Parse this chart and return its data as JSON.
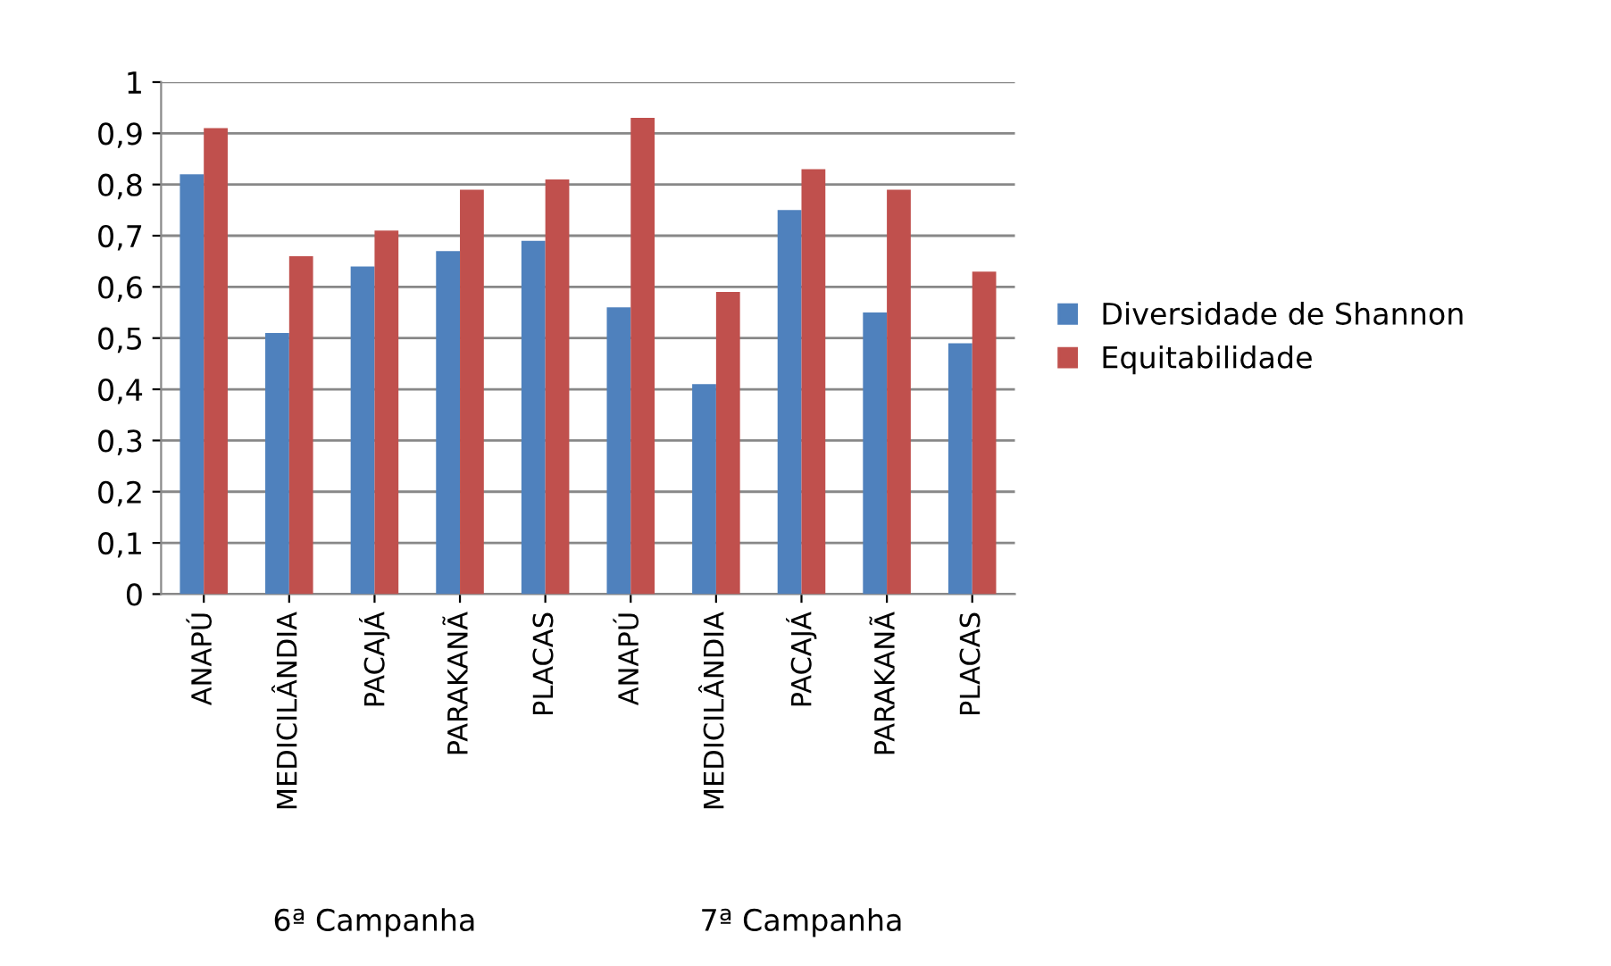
{
  "chart_data": {
    "type": "bar",
    "categories": [
      "ANAPÚ",
      "MEDICILÂNDIA",
      "PACAJÁ",
      "PARAKANÃ",
      "PLACAS",
      "ANAPÚ",
      "MEDICILÂNDIA",
      "PACAJÁ",
      "PARAKANÃ",
      "PLACAS"
    ],
    "series": [
      {
        "name": "Diversidade de Shannon",
        "color": "#4f81bd",
        "values": [
          0.82,
          0.51,
          0.64,
          0.67,
          0.69,
          0.56,
          0.41,
          0.75,
          0.55,
          0.49
        ]
      },
      {
        "name": "Equitabilidade",
        "color": "#c0504d",
        "values": [
          0.91,
          0.66,
          0.71,
          0.79,
          0.81,
          0.93,
          0.59,
          0.83,
          0.79,
          0.63
        ]
      }
    ],
    "annotations": [
      "6ª Campanha",
      "7ª Campanha"
    ],
    "ylim": [
      0,
      1
    ],
    "yticks": [
      0,
      {
        "value": 0.1,
        "label": "0,1"
      },
      {
        "value": 0.2,
        "label": "0,2"
      },
      {
        "value": 0.3,
        "label": "0,3"
      },
      {
        "value": 0.4,
        "label": "0,4"
      },
      {
        "value": 0.5,
        "label": "0,5"
      },
      {
        "value": 0.6,
        "label": "0,6"
      },
      {
        "value": 0.7,
        "label": "0,7"
      },
      {
        "value": 0.8,
        "label": "0,8"
      },
      {
        "value": 0.9,
        "label": "0,9"
      },
      1
    ],
    "grid": "y",
    "legend": "right"
  }
}
